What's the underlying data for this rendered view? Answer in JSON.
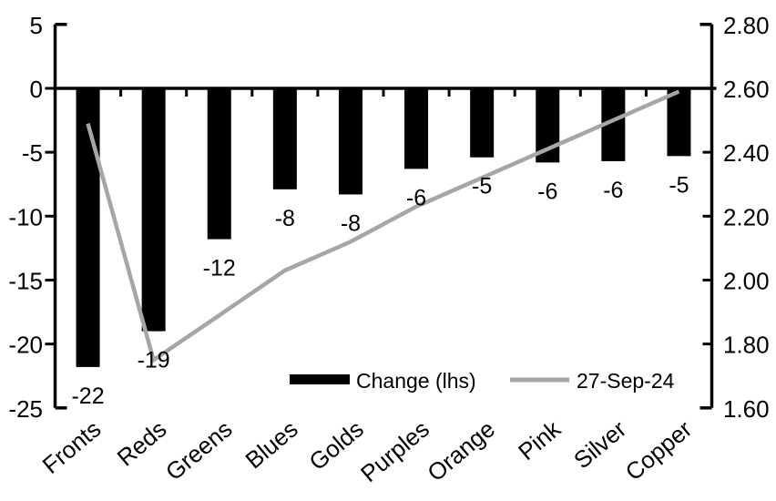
{
  "chart_data": {
    "type": "bar",
    "subtype": "dual-axis-bar-line-combo",
    "title": "",
    "xlabel": "",
    "ylabel": "",
    "grid": false,
    "background": "#ffffff",
    "text_color": "#000000",
    "categories": [
      "Fronts",
      "Reds",
      "Greens",
      "Blues",
      "Golds",
      "Purples",
      "Orange",
      "Pink",
      "Silver",
      "Copper"
    ],
    "series": [
      {
        "name": "Change (lhs)",
        "type": "bar",
        "axis": "left",
        "color": "#000000",
        "values": [
          -21.8,
          -19.0,
          -11.8,
          -7.9,
          -8.3,
          -6.3,
          -5.4,
          -5.8,
          -5.7,
          -5.3
        ],
        "data_labels": [
          "-22",
          "-19",
          "-12",
          "-8",
          "-8",
          "-6",
          "-5",
          "-6",
          "-6",
          "-5"
        ]
      },
      {
        "name": "27-Sep-24",
        "type": "line",
        "axis": "right",
        "color": "#a6a6a6",
        "values": [
          2.49,
          1.75,
          1.89,
          2.03,
          2.12,
          2.23,
          2.32,
          2.41,
          2.5,
          2.59
        ]
      }
    ],
    "left_axis": {
      "min": -25,
      "max": 5,
      "tick_interval": 5,
      "tick_labels": [
        "5",
        "0",
        "-5",
        "-10",
        "-15",
        "-20",
        "-25"
      ]
    },
    "right_axis": {
      "min": 1.6,
      "max": 2.8,
      "tick_interval": 0.2,
      "tick_labels": [
        "2.80",
        "2.60",
        "2.40",
        "2.20",
        "2.00",
        "1.80",
        "1.60"
      ]
    },
    "legend": {
      "position": "bottom-inside",
      "entries": [
        {
          "label": "Change (lhs)",
          "swatch": "bar",
          "color": "#000000"
        },
        {
          "label": "27-Sep-24",
          "swatch": "line",
          "color": "#a6a6a6"
        }
      ]
    }
  }
}
